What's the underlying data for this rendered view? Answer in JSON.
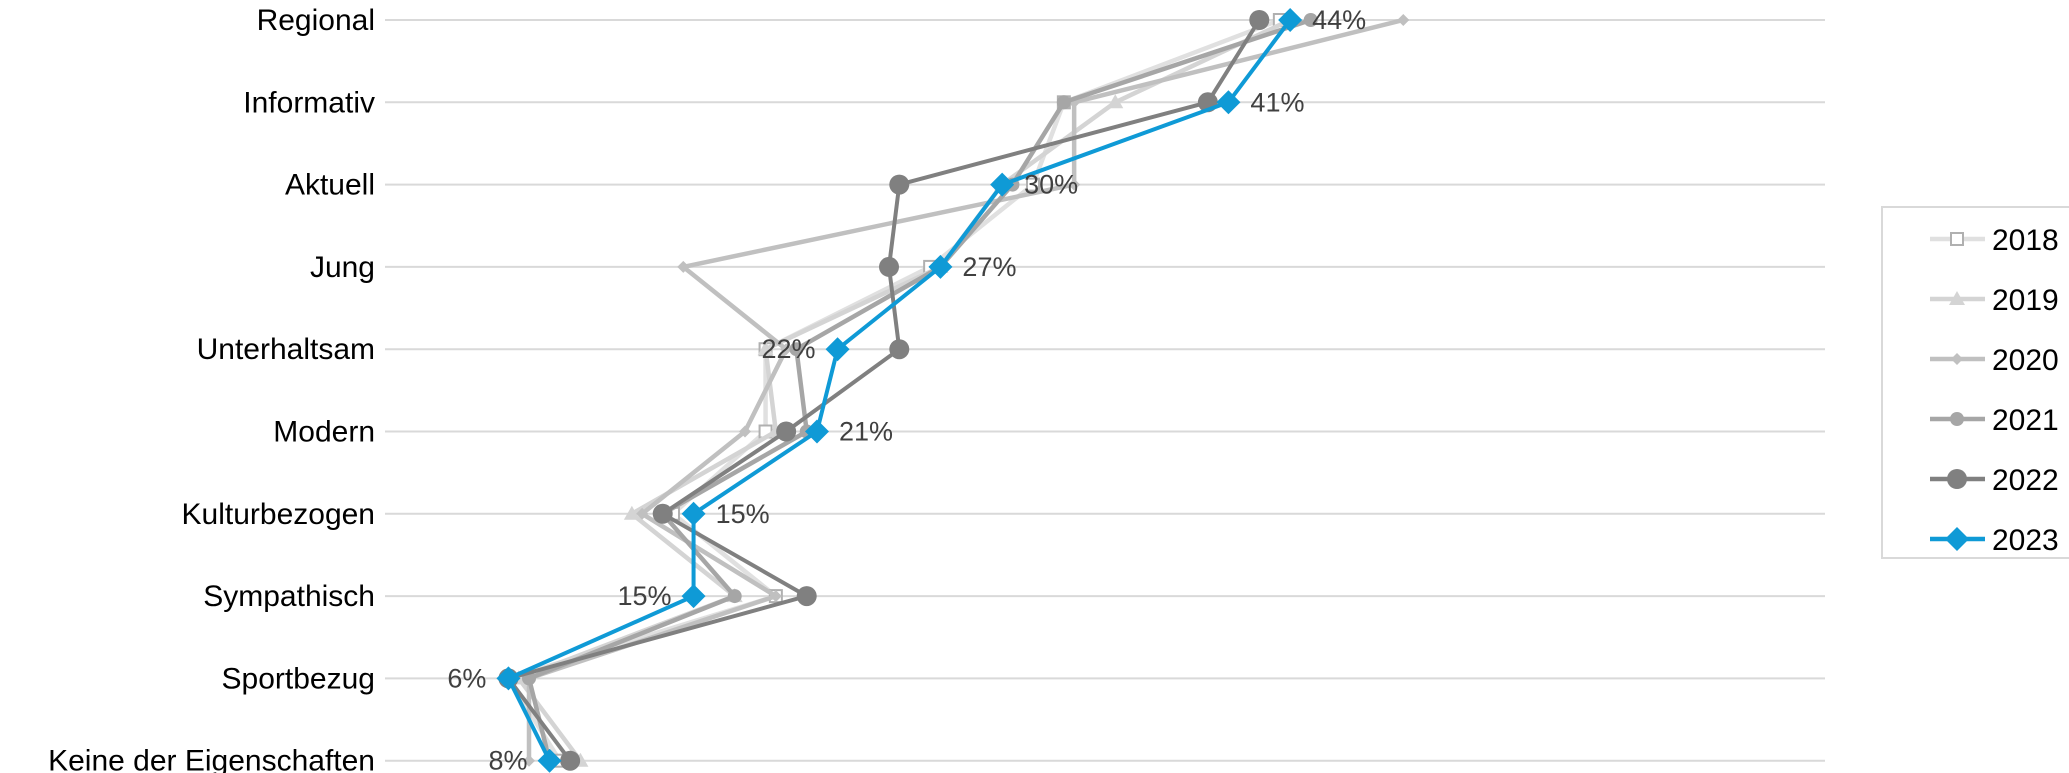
{
  "chart_data": {
    "type": "line",
    "orientation": "horizontal",
    "categories": [
      "Regional",
      "Informativ",
      "Aktuell",
      "Jung",
      "Unterhaltsam",
      "Modern",
      "Kulturbezogen",
      "Sympathisch",
      "Sportbezug",
      "Keine der Eigenschaften"
    ],
    "xlim": [
      0,
      70
    ],
    "grid": true,
    "legend_position": "right",
    "series": [
      {
        "name": "2018",
        "color": "#e0e0e0",
        "marker": "square-open",
        "values": [
          43.5,
          33,
          31.5,
          26.5,
          18.5,
          18.5,
          14,
          19,
          6,
          8.5
        ]
      },
      {
        "name": "2019",
        "color": "#d4d4d4",
        "marker": "triangle",
        "values": [
          44,
          35.5,
          30,
          27,
          18.5,
          19,
          12,
          17,
          6.5,
          9.5
        ]
      },
      {
        "name": "2020",
        "color": "#c0c0c0",
        "marker": "diamond-small",
        "values": [
          49.5,
          33.5,
          33.5,
          14.5,
          19.5,
          17.5,
          12.5,
          19,
          7,
          7
        ]
      },
      {
        "name": "2021",
        "color": "#a6a6a6",
        "marker": "circle-small",
        "values": [
          45,
          33,
          30.5,
          27,
          20,
          20.5,
          13.5,
          17,
          7,
          8
        ]
      },
      {
        "name": "2022",
        "color": "#808080",
        "marker": "circle",
        "values": [
          42.5,
          40,
          25,
          24.5,
          25,
          19.5,
          13.5,
          20.5,
          6,
          9
        ]
      },
      {
        "name": "2023",
        "color": "#0f9ad6",
        "marker": "diamond",
        "values": [
          44,
          41,
          30,
          27,
          22,
          21,
          15,
          15,
          6,
          8
        ]
      }
    ],
    "data_labels": {
      "series": "2023",
      "labels": [
        "44%",
        "41%",
        "30%",
        "27%",
        "22%",
        "21%",
        "15%",
        "15%",
        "6%",
        "8%"
      ]
    }
  }
}
